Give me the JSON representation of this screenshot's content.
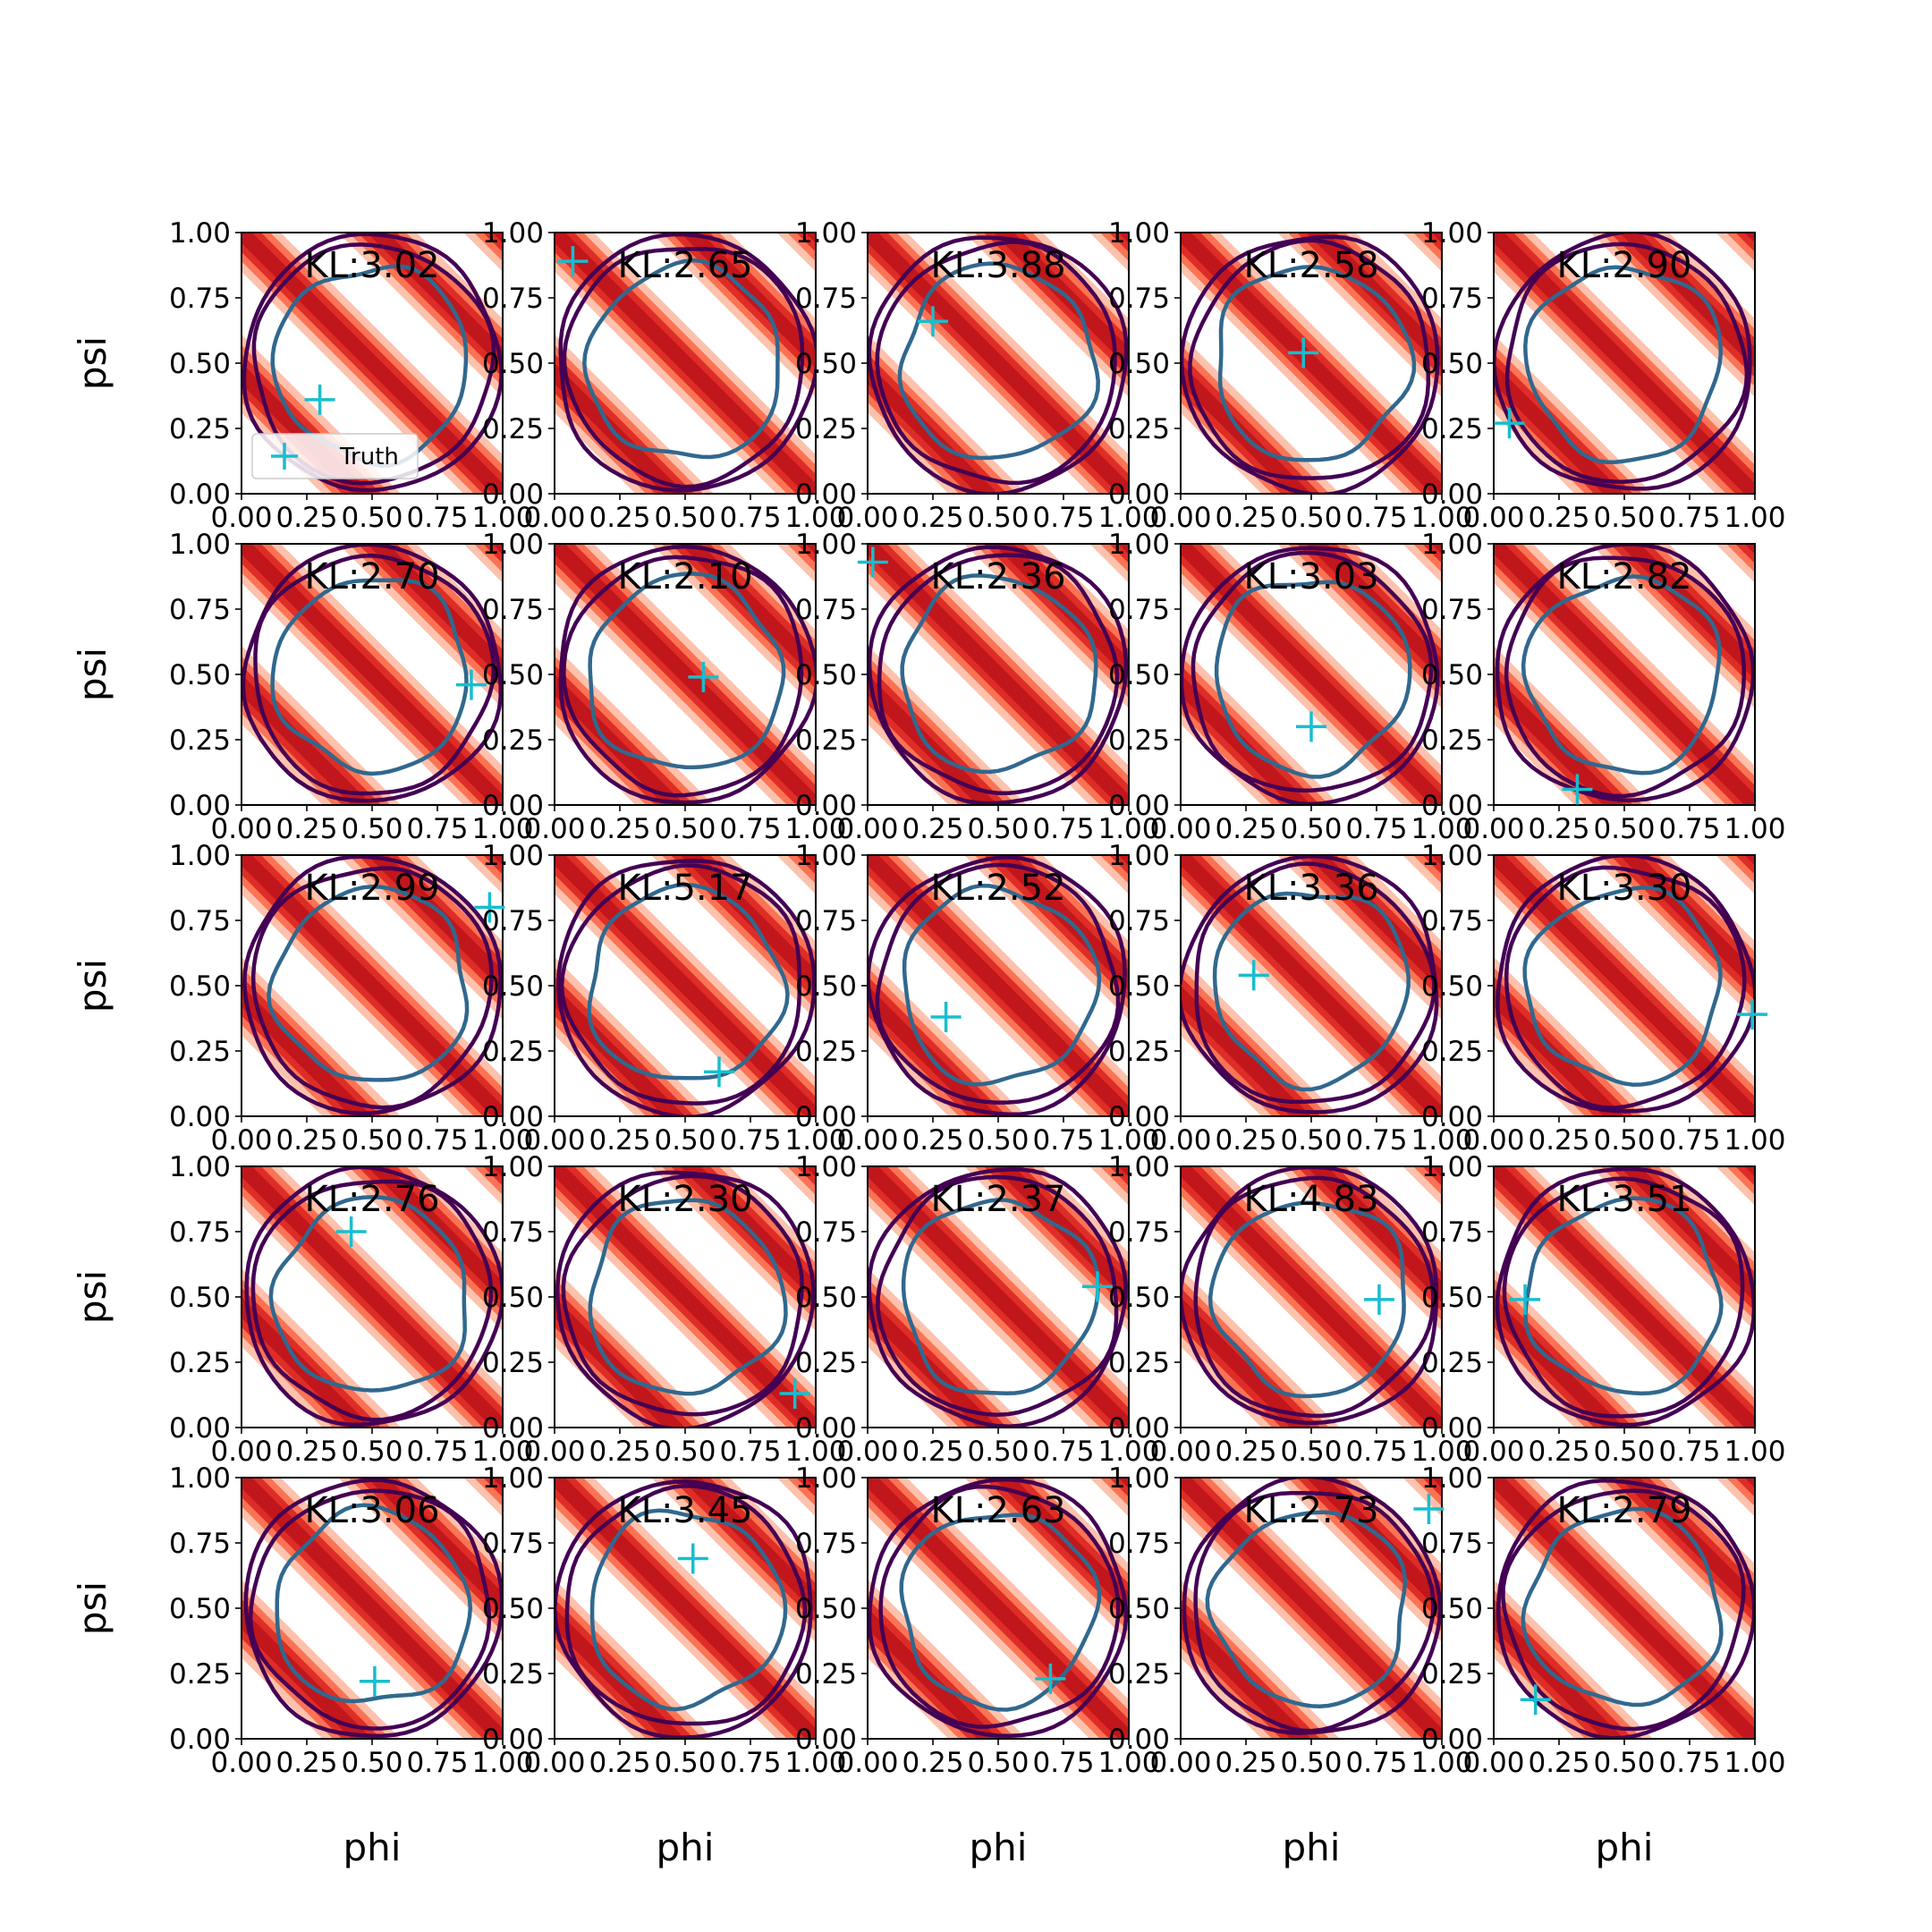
{
  "figure": {
    "xlabel": "phi",
    "ylabel": "psi",
    "legend_label": "Truth",
    "legend_panel": 0,
    "legend_placement": "lower-left"
  },
  "colors": {
    "band_dark": "#c0161c",
    "band_mid": "#de2d26",
    "band_light": "#fb6a4a",
    "band_pale": "#fcae91",
    "contour_outer": "#440154",
    "contour_inner": "#31688e",
    "truth_marker": "#17becf",
    "axis": "#000000"
  },
  "chart_data": {
    "type": "grid of 2D density contour plots",
    "rows": 5,
    "cols": 5,
    "x_range": [
      0,
      1
    ],
    "y_range": [
      0,
      1
    ],
    "x_ticks": [
      "0.00",
      "0.25",
      "0.50",
      "0.75",
      "1.00"
    ],
    "y_ticks": [
      "0.00",
      "0.25",
      "0.50",
      "0.75",
      "1.00"
    ],
    "panels": [
      {
        "kl": "KL:3.02",
        "truth": [
          0.3,
          0.36
        ]
      },
      {
        "kl": "KL:2.65",
        "truth": [
          0.07,
          0.89
        ]
      },
      {
        "kl": "KL:3.88",
        "truth": [
          0.25,
          0.66
        ]
      },
      {
        "kl": "KL:2.58",
        "truth": [
          0.47,
          0.54
        ]
      },
      {
        "kl": "KL:2.90",
        "truth": [
          0.06,
          0.27
        ]
      },
      {
        "kl": "KL:2.70",
        "truth": [
          0.88,
          0.46
        ]
      },
      {
        "kl": "KL:2.10",
        "truth": [
          0.57,
          0.49
        ]
      },
      {
        "kl": "KL:2.36",
        "truth": [
          0.02,
          0.93
        ]
      },
      {
        "kl": "KL:3.03",
        "truth": [
          0.5,
          0.3
        ]
      },
      {
        "kl": "KL:2.82",
        "truth": [
          0.32,
          0.06
        ]
      },
      {
        "kl": "KL:2.99",
        "truth": [
          0.95,
          0.8
        ]
      },
      {
        "kl": "KL:5.17",
        "truth": [
          0.63,
          0.17
        ]
      },
      {
        "kl": "KL:2.52",
        "truth": [
          0.3,
          0.38
        ]
      },
      {
        "kl": "KL:3.36",
        "truth": [
          0.28,
          0.54
        ]
      },
      {
        "kl": "KL:3.30",
        "truth": [
          0.99,
          0.39
        ]
      },
      {
        "kl": "KL:2.76",
        "truth": [
          0.42,
          0.75
        ]
      },
      {
        "kl": "KL:2.30",
        "truth": [
          0.92,
          0.13
        ]
      },
      {
        "kl": "KL:2.37",
        "truth": [
          0.88,
          0.54
        ]
      },
      {
        "kl": "KL:4.83",
        "truth": [
          0.76,
          0.49
        ]
      },
      {
        "kl": "KL:3.51",
        "truth": [
          0.12,
          0.49
        ]
      },
      {
        "kl": "KL:3.06",
        "truth": [
          0.51,
          0.22
        ]
      },
      {
        "kl": "KL:3.45",
        "truth": [
          0.53,
          0.69
        ]
      },
      {
        "kl": "KL:2.63",
        "truth": [
          0.7,
          0.23
        ]
      },
      {
        "kl": "KL:2.73",
        "truth": [
          0.95,
          0.88
        ]
      },
      {
        "kl": "KL:2.79",
        "truth": [
          0.16,
          0.15
        ]
      }
    ]
  }
}
